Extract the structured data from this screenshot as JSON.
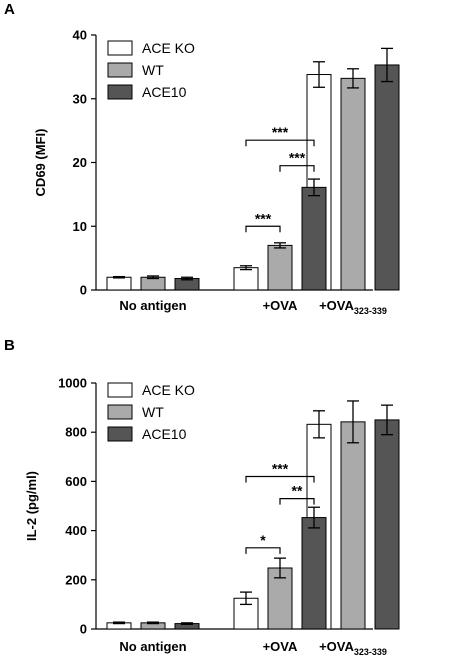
{
  "colors": {
    "ACE KO": "#ffffff",
    "WT": "#aaaaaa",
    "ACE10": "#555555"
  },
  "chart_data": [
    {
      "type": "bar",
      "panel": "A",
      "ylabel": "CD69 (MFI)",
      "ylim": [
        0,
        40
      ],
      "yticks": [
        "0",
        "10",
        "20",
        "30",
        "40"
      ],
      "categories": [
        {
          "main": "No antigen",
          "sub": ""
        },
        {
          "main": "+OVA",
          "sub": ""
        },
        {
          "main": "+OVA",
          "sub": "323-339"
        }
      ],
      "series": [
        {
          "name": "ACE KO",
          "values": [
            2.0,
            3.5,
            33.8
          ],
          "errors": [
            0.1,
            0.3,
            2.0
          ]
        },
        {
          "name": "WT",
          "values": [
            2.0,
            7.0,
            33.2
          ],
          "errors": [
            0.2,
            0.4,
            1.5
          ]
        },
        {
          "name": "ACE10",
          "values": [
            1.8,
            16.1,
            35.3
          ],
          "errors": [
            0.2,
            1.3,
            2.6
          ]
        }
      ],
      "brackets": [
        {
          "category": 1,
          "from": 0,
          "to": 1,
          "y": 10.0,
          "label": "***"
        },
        {
          "category": 1,
          "from": 1,
          "to": 2,
          "y": 19.5,
          "label": "***"
        },
        {
          "category": 1,
          "from": 0,
          "to": 2,
          "y": 23.5,
          "label": "***"
        }
      ],
      "legend": [
        "ACE KO",
        "WT",
        "ACE10"
      ]
    },
    {
      "type": "bar",
      "panel": "B",
      "ylabel": "IL-2 (pg/ml)",
      "ylim": [
        0,
        1000
      ],
      "yticks": [
        "0",
        "200",
        "400",
        "600",
        "800",
        "1000"
      ],
      "categories": [
        {
          "main": "No antigen",
          "sub": ""
        },
        {
          "main": "+OVA",
          "sub": ""
        },
        {
          "main": "+OVA",
          "sub": "323-339"
        }
      ],
      "series": [
        {
          "name": "ACE KO",
          "values": [
            25,
            125,
            832
          ],
          "errors": [
            3,
            25,
            55
          ]
        },
        {
          "name": "WT",
          "values": [
            25,
            248,
            842
          ],
          "errors": [
            3,
            40,
            85
          ]
        },
        {
          "name": "ACE10",
          "values": [
            22,
            453,
            850
          ],
          "errors": [
            3,
            42,
            60
          ]
        }
      ],
      "brackets": [
        {
          "category": 1,
          "from": 0,
          "to": 1,
          "y": 330,
          "label": "*"
        },
        {
          "category": 1,
          "from": 1,
          "to": 2,
          "y": 530,
          "label": "**"
        },
        {
          "category": 1,
          "from": 0,
          "to": 2,
          "y": 620,
          "label": "***"
        }
      ],
      "legend": [
        "ACE KO",
        "WT",
        "ACE10"
      ]
    }
  ]
}
